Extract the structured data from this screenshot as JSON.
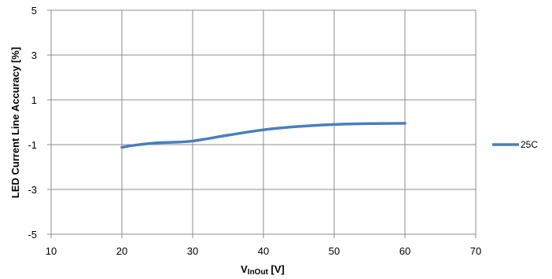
{
  "chart_data": {
    "type": "line",
    "xlabel_main": "V",
    "xlabel_sub": "InOut",
    "xlabel_unit": " [V]",
    "ylabel": "LED Current Line Accuracy  [%]",
    "xlim": [
      10,
      70
    ],
    "ylim": [
      -5,
      5
    ],
    "xticks": [
      10,
      20,
      30,
      40,
      50,
      60,
      70
    ],
    "yticks": [
      5,
      3,
      1,
      -1,
      -3,
      -5
    ],
    "grid": true,
    "legend_position": "right",
    "series": [
      {
        "name": "25C",
        "color": "#4a7ebb",
        "x": [
          20,
          22,
          25,
          27,
          30,
          35,
          40,
          45,
          50,
          55,
          60
        ],
        "y": [
          -1.12,
          -1.02,
          -0.92,
          -0.9,
          -0.84,
          -0.58,
          -0.34,
          -0.19,
          -0.1,
          -0.06,
          -0.05
        ]
      }
    ]
  }
}
